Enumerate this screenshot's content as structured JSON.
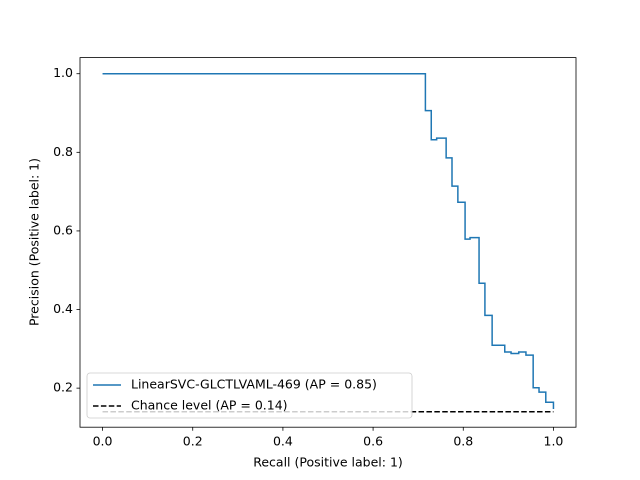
{
  "chart_data": {
    "type": "line",
    "xlabel": "Recall (Positive label: 1)",
    "ylabel": "Precision (Positive label: 1)",
    "xlim": [
      -0.05,
      1.05
    ],
    "ylim": [
      0.1006,
      1.041
    ],
    "xticks": [
      {
        "value": 0,
        "label": "0.0"
      },
      0.2,
      0.4,
      0.6,
      0.8,
      {
        "value": 1,
        "label": "1.0"
      }
    ],
    "yticks": [
      0.2,
      0.4,
      0.6,
      0.8,
      {
        "value": 1,
        "label": "1.0"
      }
    ],
    "grid": false,
    "legend": "lower left",
    "series": [
      {
        "name": "LinearSVC-GLCTLVAML-469 (AP = 0.85)",
        "color": "#1f77b4",
        "dash": false,
        "steps": true,
        "x": [
          0,
          0.716,
          0.729,
          0.741,
          0.762,
          0.775,
          0.788,
          0.804,
          0.815,
          0.835,
          0.848,
          0.864,
          0.892,
          0.906,
          0.923,
          0.939,
          0.955,
          0.968,
          0.983,
          1.0
        ],
        "values": [
          1.0,
          0.906,
          0.832,
          0.836,
          0.786,
          0.714,
          0.673,
          0.579,
          0.583,
          0.467,
          0.385,
          0.309,
          0.292,
          0.288,
          0.292,
          0.284,
          0.201,
          0.19,
          0.164,
          0.147
        ]
      },
      {
        "name": "Chance level (AP = 0.14)",
        "color": "#000000",
        "dash": true,
        "steps": false,
        "x": [
          0,
          1
        ],
        "values": [
          0.14,
          0.14
        ]
      }
    ]
  }
}
